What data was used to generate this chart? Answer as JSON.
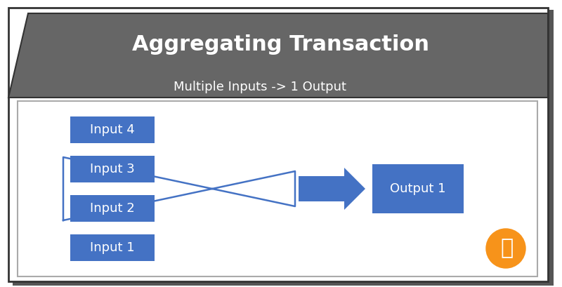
{
  "title": "Aggregating Transaction",
  "subtitle": "Multiple Inputs -> 1 Output",
  "bg_color": "#ffffff",
  "header_color": "#666666",
  "box_color": "#4472C4",
  "box_text_color": "#ffffff",
  "arrow_color": "#4472C4",
  "inputs": [
    "Input 1",
    "Input 2",
    "Input 3",
    "Input 4"
  ],
  "output": "Output 1",
  "title_fontsize": 22,
  "subtitle_fontsize": 13,
  "label_fontsize": 13,
  "bitcoin_orange": "#F7931A",
  "bitcoin_symbol": "₿",
  "outer_border_color": "#333333",
  "inner_border_color": "#4472C4"
}
